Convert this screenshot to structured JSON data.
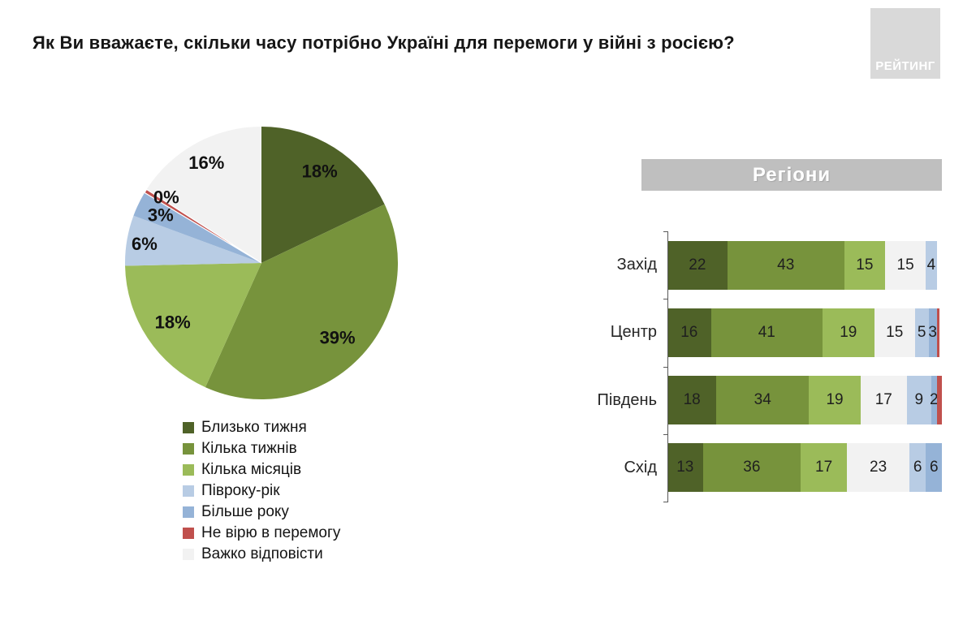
{
  "title": "Як Ви вважаєте, скільки часу потрібно Україні для перемоги у війні з росією?",
  "logo": {
    "text": "РЕЙТИНГ"
  },
  "chart_data": [
    {
      "type": "pie",
      "unit": "%",
      "labels": [
        "Близько тижня",
        "Кілька тижнів",
        "Кілька місяців",
        "Півроку-рік",
        "Більше року",
        "Не вірю в перемогу",
        "Важко відповісти"
      ],
      "values": [
        18,
        39,
        18,
        6,
        3,
        0,
        16
      ],
      "display_labels": [
        "18%",
        "39%",
        "18%",
        "6%",
        "3%",
        "0%",
        "16%"
      ],
      "colors": [
        "#4F6228",
        "#77933C",
        "#9BBB59",
        "#B8CCE4",
        "#95B3D7",
        "#C0504D",
        "#F2F2F2"
      ],
      "legend_position": "below",
      "start_angle_deg": 0,
      "direction": "clockwise"
    },
    {
      "type": "bar",
      "subtype": "stacked-horizontal",
      "title": "Регіони",
      "xmax": 100,
      "segment_order": [
        "Близько тижня",
        "Кілька тижнів",
        "Кілька місяців",
        "Важко відповісти",
        "Півроку-рік",
        "Більше року",
        "Не вірю в перемогу"
      ],
      "segment_colors": [
        "#4F6228",
        "#77933C",
        "#9BBB59",
        "#F2F2F2",
        "#B8CCE4",
        "#95B3D7",
        "#C0504D"
      ],
      "rows": [
        {
          "category": "Захід",
          "values": [
            22,
            43,
            15,
            15,
            4,
            0,
            0
          ],
          "value_labels": [
            "22",
            "43",
            "15",
            "15",
            "4",
            "",
            ""
          ]
        },
        {
          "category": "Центр",
          "values": [
            16,
            41,
            19,
            15,
            5,
            3,
            1
          ],
          "value_labels": [
            "16",
            "41",
            "19",
            "15",
            "5",
            "3",
            ""
          ]
        },
        {
          "category": "Південь",
          "values": [
            18,
            34,
            19,
            17,
            9,
            2,
            2
          ],
          "value_labels": [
            "18",
            "34",
            "19",
            "17",
            "9",
            "2",
            ""
          ]
        },
        {
          "category": "Схід",
          "values": [
            13,
            36,
            17,
            23,
            6,
            6,
            0
          ],
          "value_labels": [
            "13",
            "36",
            "17",
            "23",
            "6",
            "6",
            ""
          ]
        }
      ]
    }
  ]
}
